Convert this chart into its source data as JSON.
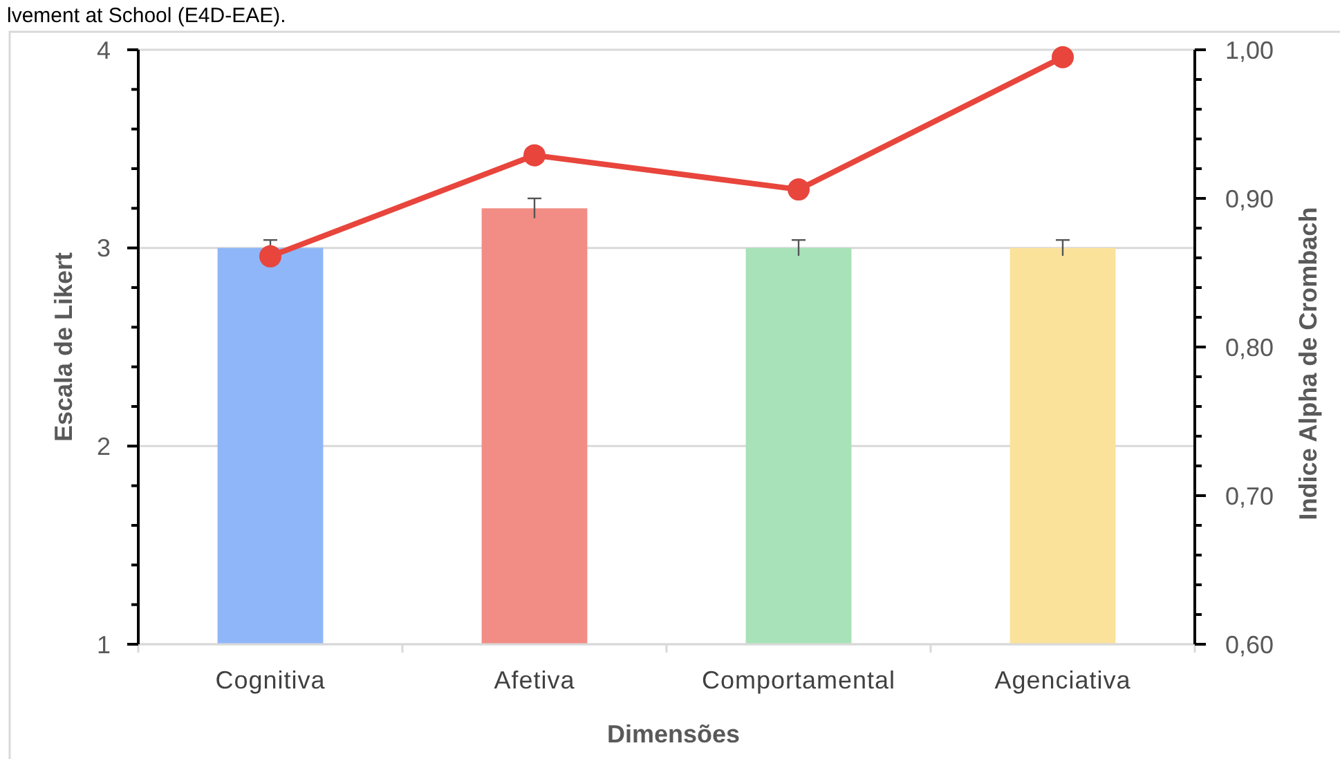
{
  "chart_data": {
    "type": "bar",
    "title": "lvement at School (E4D-EAE).",
    "xlabel": "Dimensões",
    "ylabel": "Escala de Likert",
    "y2label": "Indice Alpha de Crombach",
    "categories": [
      "Cognitiva",
      "Afetiva",
      "Comportamental",
      "Agenciativa"
    ],
    "series": [
      {
        "colors": [
          "#8fb6f8",
          "#f28d85",
          "#a8e2b8",
          "#fbe29a"
        ],
        "values": [
          3.0,
          3.2,
          3.0,
          3.0
        ],
        "errors": [
          0.04,
          0.05,
          0.04,
          0.04
        ]
      },
      {
        "type": "line",
        "axis": "y2",
        "color": "#e8453c",
        "values": [
          0.861,
          0.929,
          0.906,
          0.995
        ],
        "marker": "circle"
      }
    ],
    "ylim": [
      1,
      4
    ],
    "yticks": [
      1,
      {
        "value": 1.2,
        "label": null
      },
      {
        "value": 1.4,
        "label": null
      },
      {
        "value": 1.6,
        "label": null
      },
      {
        "value": 1.8,
        "label": null
      },
      2,
      {
        "value": 2.2,
        "label": null
      },
      {
        "value": 2.4,
        "label": null
      },
      {
        "value": 2.6,
        "label": null
      },
      {
        "value": 2.8,
        "label": null
      },
      3,
      {
        "value": 3.2,
        "label": null
      },
      {
        "value": 3.4,
        "label": null
      },
      {
        "value": 3.6,
        "label": null
      },
      {
        "value": 3.8,
        "label": null
      },
      4
    ],
    "y2lim": [
      0.6,
      1.0
    ],
    "y2ticks": [
      {
        "value": 0.6,
        "label": "0,60"
      },
      {
        "value": 0.62,
        "label": null
      },
      {
        "value": 0.64,
        "label": null
      },
      {
        "value": 0.66,
        "label": null
      },
      {
        "value": 0.68,
        "label": null
      },
      {
        "value": 0.7,
        "label": "0,70"
      },
      {
        "value": 0.72,
        "label": null
      },
      {
        "value": 0.74,
        "label": null
      },
      {
        "value": 0.76,
        "label": null
      },
      {
        "value": 0.78,
        "label": null
      },
      {
        "value": 0.8,
        "label": "0,80"
      },
      {
        "value": 0.82,
        "label": null
      },
      {
        "value": 0.84,
        "label": null
      },
      {
        "value": 0.86,
        "label": null
      },
      {
        "value": 0.88,
        "label": null
      },
      {
        "value": 0.9,
        "label": "0,90"
      },
      {
        "value": 0.92,
        "label": null
      },
      {
        "value": 0.94,
        "label": null
      },
      {
        "value": 0.96,
        "label": null
      },
      {
        "value": 0.98,
        "label": null
      },
      {
        "value": 1.0,
        "label": "1,00"
      }
    ],
    "grid": "y"
  }
}
